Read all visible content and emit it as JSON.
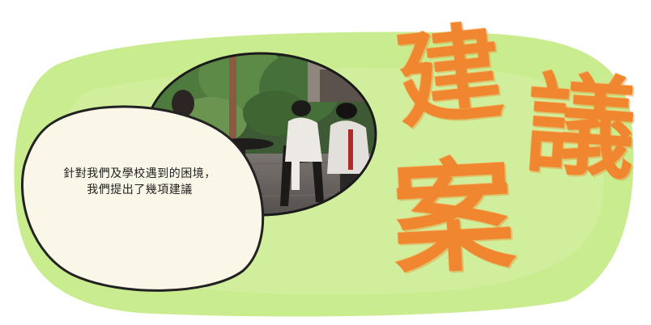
{
  "intro_text": {
    "line1": "針對我們及學校遇到的困境，",
    "line2": "我們提出了幾項建議"
  },
  "title_chars": [
    "建",
    "議",
    "案"
  ],
  "colors": {
    "background_green": "#c9ec8f",
    "accent_orange": "#f0862f",
    "bubble_fill": "#fbf7e8",
    "outline": "#222222"
  },
  "photo": {
    "description_icon": "photo-of-students-at-cafe-table"
  }
}
